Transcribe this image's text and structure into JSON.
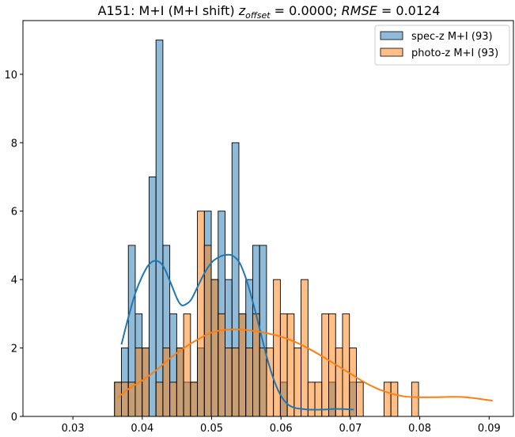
{
  "chart_data": {
    "type": "bar",
    "title": {
      "prefix": "A151: M+I (M+I shift) ",
      "z_symbol": "z",
      "z_subscript": "offset",
      "z_value": " = 0.0000; ",
      "rmse_symbol": "RMSE",
      "rmse_value": " = 0.0124"
    },
    "xlabel": "",
    "ylabel": "",
    "xlim": [
      0.0228,
      0.0935
    ],
    "ylim": [
      0,
      11.57
    ],
    "grid": false,
    "legend_position": "top-right",
    "x_ticks": [
      "0.03",
      "0.04",
      "0.05",
      "0.06",
      "0.07",
      "0.08",
      "0.09"
    ],
    "x_tick_values": [
      0.03,
      0.04,
      0.05,
      0.06,
      0.07,
      0.08,
      0.09
    ],
    "y_ticks": [
      "0",
      "2",
      "4",
      "6",
      "8",
      "10"
    ],
    "y_tick_values": [
      0,
      2,
      4,
      6,
      8,
      10
    ],
    "bin_start": 0.036,
    "bin_width": 0.000996,
    "series": [
      {
        "name": "spec-z M+I (93)",
        "color": "#1f77b4",
        "counts": [
          1,
          2,
          5,
          3,
          2,
          7,
          11,
          5,
          3,
          2,
          1,
          1,
          2,
          6,
          4,
          6,
          4,
          8,
          3,
          4,
          5,
          5,
          0,
          0,
          1,
          0,
          0,
          0,
          0,
          0,
          0,
          1,
          0,
          0,
          1,
          0,
          0,
          0,
          0,
          0,
          0,
          0,
          0,
          0
        ],
        "kde_x": [
          0.037,
          0.038,
          0.039,
          0.04,
          0.041,
          0.042,
          0.043,
          0.044,
          0.045,
          0.0455,
          0.046,
          0.047,
          0.048,
          0.049,
          0.05,
          0.051,
          0.052,
          0.053,
          0.054,
          0.055,
          0.056,
          0.057,
          0.058,
          0.059,
          0.06,
          0.061,
          0.062,
          0.063,
          0.064,
          0.066,
          0.068,
          0.0705
        ],
        "kde_y": [
          2.1,
          2.9,
          3.6,
          4.1,
          4.45,
          4.55,
          4.4,
          3.95,
          3.45,
          3.28,
          3.25,
          3.4,
          3.8,
          4.2,
          4.5,
          4.65,
          4.72,
          4.7,
          4.5,
          4.0,
          3.3,
          2.5,
          1.7,
          1.05,
          0.6,
          0.35,
          0.25,
          0.22,
          0.2,
          0.2,
          0.22,
          0.2
        ]
      },
      {
        "name": "photo-z M+I (93)",
        "color": "#ff7f0e",
        "counts": [
          1,
          1,
          1,
          2,
          2,
          0,
          1,
          2,
          1,
          2,
          3,
          1,
          6,
          5,
          4,
          3,
          2,
          2,
          3,
          2,
          3,
          2,
          2,
          4,
          3,
          3,
          2,
          4,
          1,
          1,
          3,
          3,
          2,
          3,
          2,
          1,
          0,
          0,
          0,
          1,
          1,
          0,
          0,
          1
        ],
        "kde_x": [
          0.0365,
          0.038,
          0.04,
          0.042,
          0.044,
          0.046,
          0.048,
          0.05,
          0.052,
          0.054,
          0.056,
          0.058,
          0.06,
          0.062,
          0.064,
          0.066,
          0.068,
          0.07,
          0.072,
          0.074,
          0.076,
          0.078,
          0.08,
          0.082,
          0.084,
          0.086,
          0.088,
          0.0905
        ],
        "kde_y": [
          0.55,
          0.8,
          1.05,
          1.35,
          1.7,
          2.0,
          2.25,
          2.45,
          2.53,
          2.54,
          2.5,
          2.43,
          2.33,
          2.18,
          1.98,
          1.75,
          1.5,
          1.25,
          1.0,
          0.8,
          0.66,
          0.58,
          0.56,
          0.56,
          0.57,
          0.57,
          0.53,
          0.46
        ]
      }
    ]
  }
}
